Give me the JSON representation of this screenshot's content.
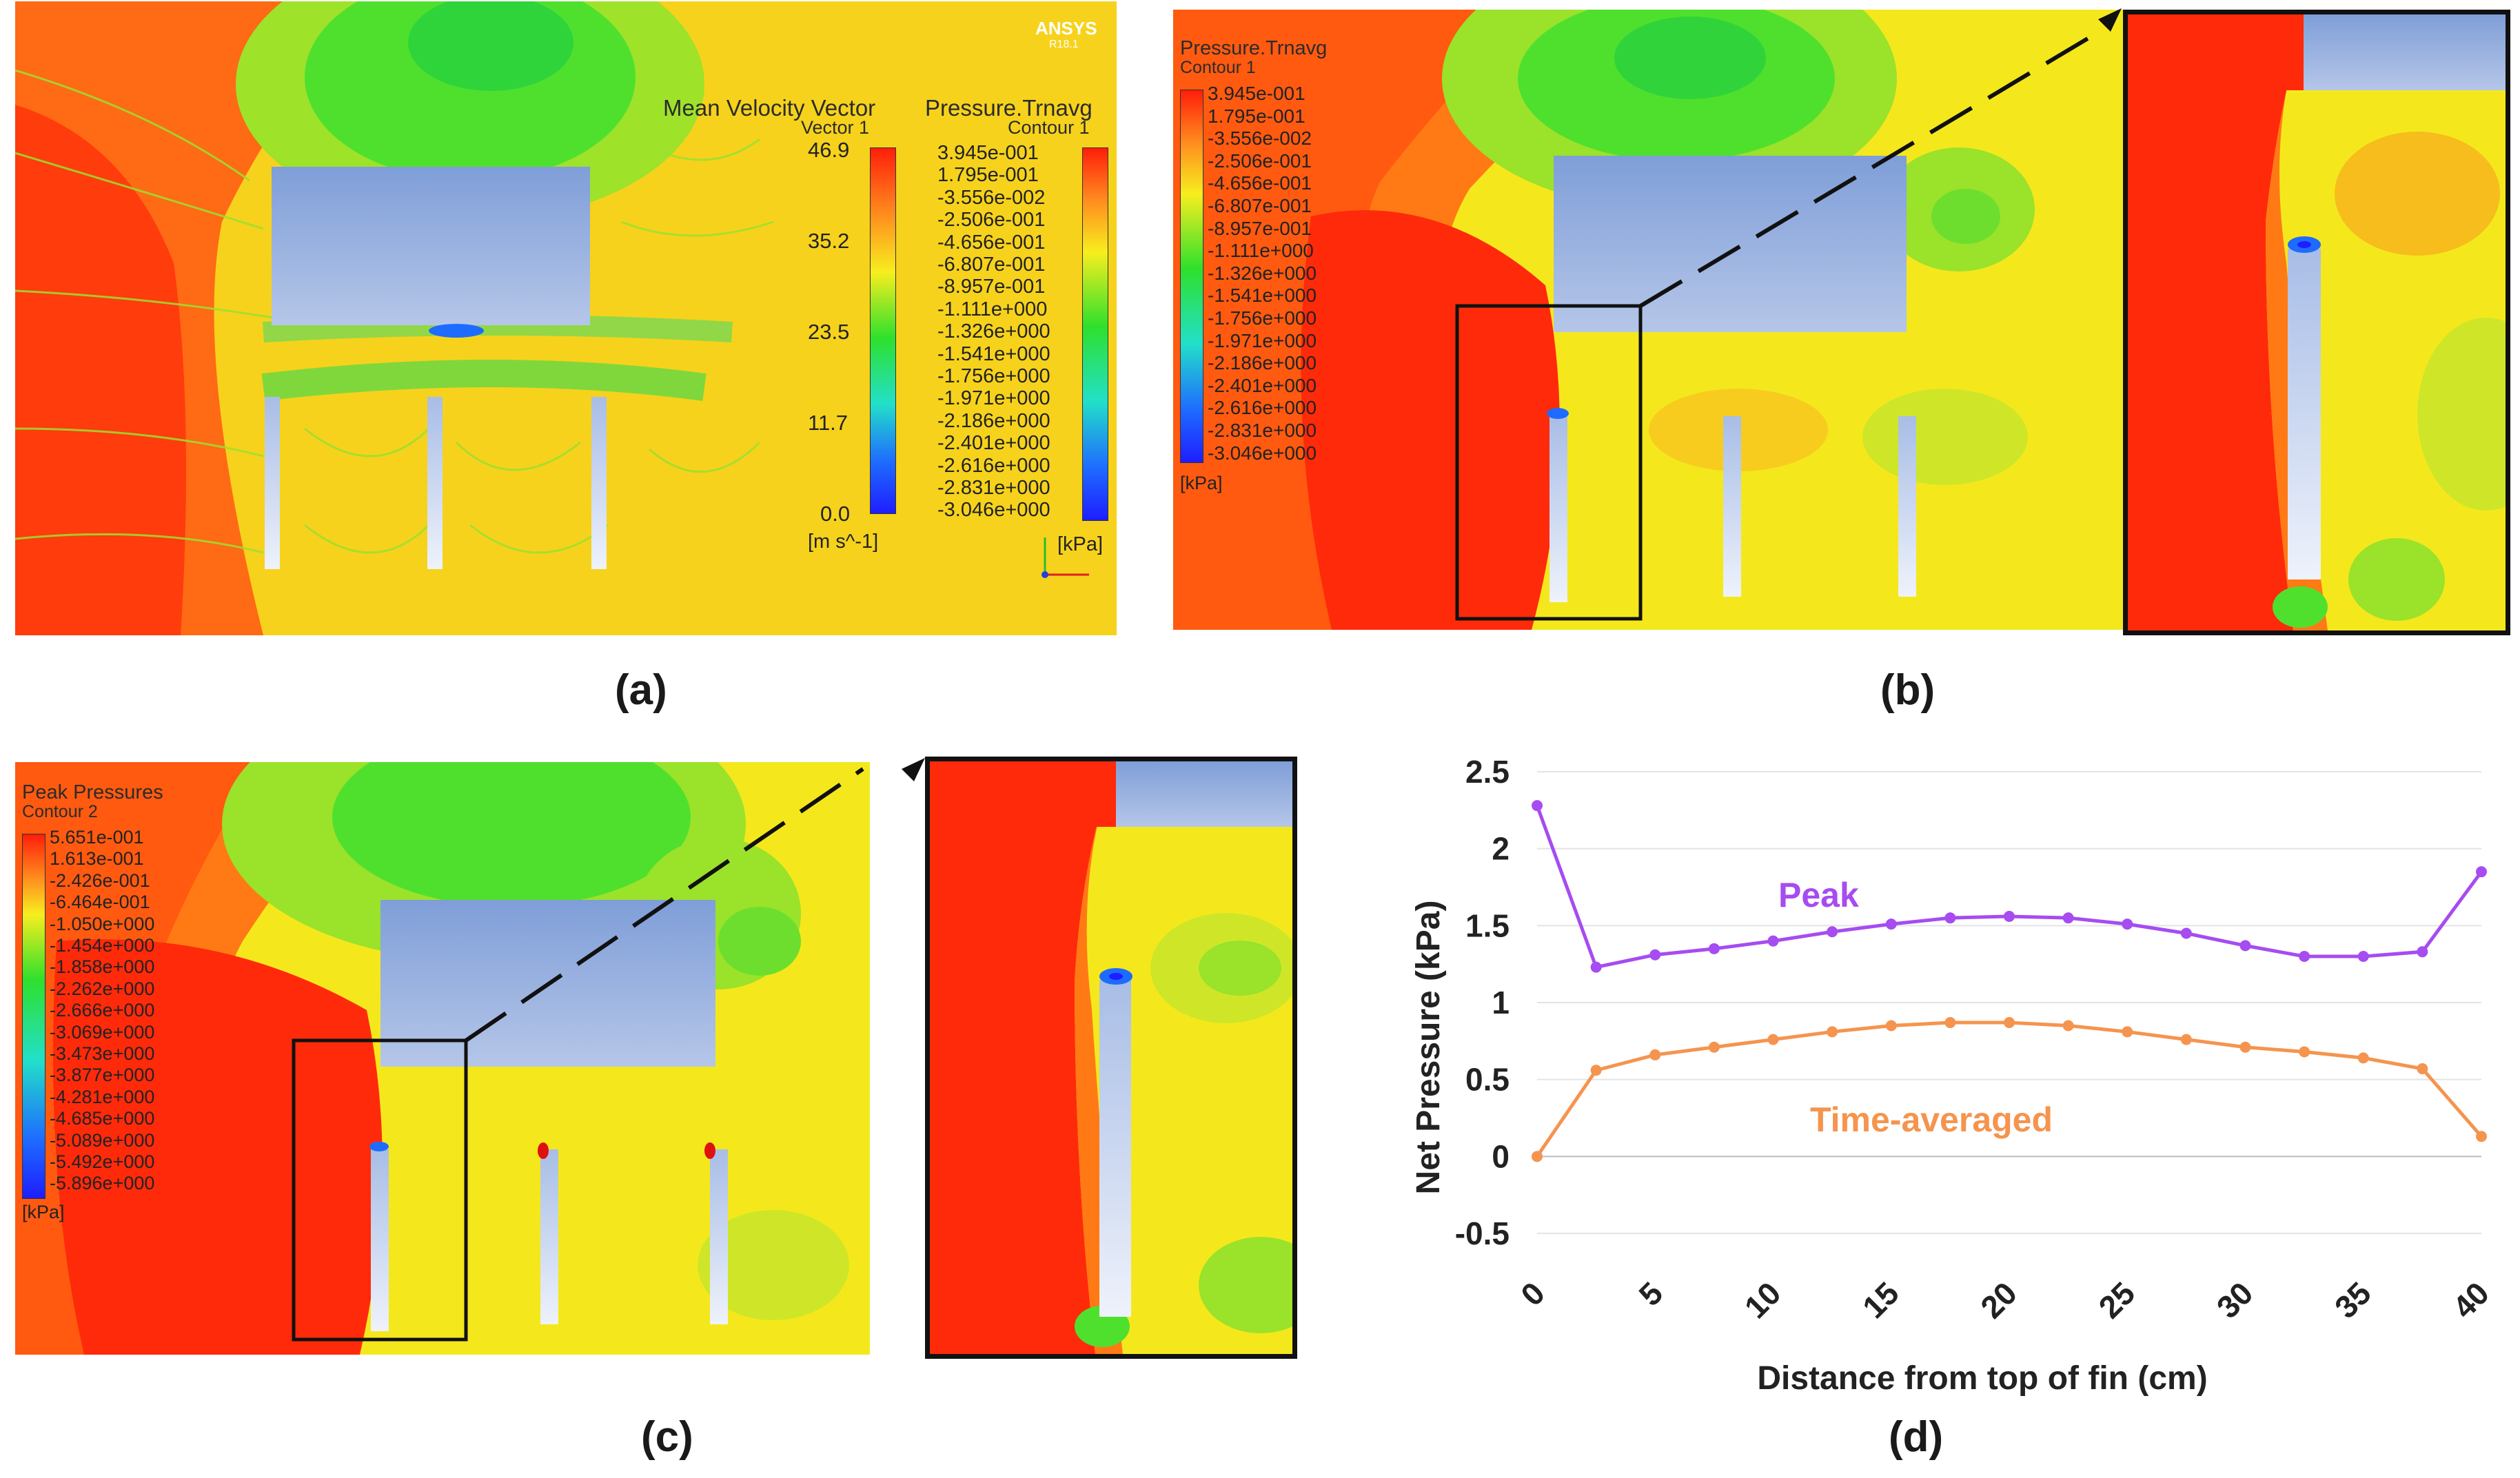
{
  "figure": {
    "captions": [
      "(a)",
      "(b)",
      "(c)",
      "(d)"
    ]
  },
  "panel_a": {
    "logo": "ANSYS",
    "logo_sub": "R18.1",
    "vector_legend": {
      "title": "Mean Velocity Vector",
      "subtitle": "Vector 1",
      "ticks": [
        "46.9",
        "35.2",
        "23.5",
        "11.7",
        "0.0"
      ],
      "unit": "[m s^-1]"
    },
    "pressure_legend": {
      "title": "Pressure.Trnavg",
      "subtitle": "Contour 1",
      "ticks": [
        "3.945e-001",
        "1.795e-001",
        "-3.556e-002",
        "-2.506e-001",
        "-4.656e-001",
        "-6.807e-001",
        "-8.957e-001",
        "-1.111e+000",
        "-1.326e+000",
        "-1.541e+000",
        "-1.756e+000",
        "-1.971e+000",
        "-2.186e+000",
        "-2.401e+000",
        "-2.616e+000",
        "-2.831e+000",
        "-3.046e+000"
      ],
      "unit": "[kPa]"
    }
  },
  "panel_b": {
    "legend": {
      "title": "Pressure.Trnavg",
      "subtitle": "Contour 1",
      "ticks": [
        "3.945e-001",
        "1.795e-001",
        "-3.556e-002",
        "-2.506e-001",
        "-4.656e-001",
        "-6.807e-001",
        "-8.957e-001",
        "-1.111e+000",
        "-1.326e+000",
        "-1.541e+000",
        "-1.756e+000",
        "-1.971e+000",
        "-2.186e+000",
        "-2.401e+000",
        "-2.616e+000",
        "-2.831e+000",
        "-3.046e+000"
      ],
      "unit": "[kPa]"
    }
  },
  "panel_c": {
    "legend": {
      "title": "Peak Pressures",
      "subtitle": "Contour 2",
      "ticks": [
        "5.651e-001",
        "1.613e-001",
        "-2.426e-001",
        "-6.464e-001",
        "-1.050e+000",
        "-1.454e+000",
        "-1.858e+000",
        "-2.262e+000",
        "-2.666e+000",
        "-3.069e+000",
        "-3.473e+000",
        "-3.877e+000",
        "-4.281e+000",
        "-4.685e+000",
        "-5.089e+000",
        "-5.492e+000",
        "-5.896e+000"
      ],
      "unit": "[kPa]"
    }
  },
  "colors": {
    "purple": "#a64cf0",
    "orange": "#f5944e",
    "contour_red": "#ff1e0a",
    "contour_yellow": "#f1ee1e",
    "contour_green": "#2ee02c",
    "body_blue": "#8ea9dd"
  },
  "chart_data": {
    "type": "line",
    "title": "",
    "xlabel": "Distance from top of fin (cm)",
    "ylabel": "Net Pressure (kPa)",
    "xlim": [
      0,
      40
    ],
    "ylim": [
      -0.5,
      2.5
    ],
    "x_ticks": [
      "0",
      "5",
      "10",
      "15",
      "20",
      "25",
      "30",
      "35",
      "40"
    ],
    "y_ticks": [
      "2.5",
      "2",
      "1.5",
      "1",
      "0.5",
      "0",
      "-0.5"
    ],
    "series": [
      {
        "name": "Peak",
        "color": "#a64cf0",
        "x": [
          0,
          2.5,
          5,
          7.5,
          10,
          12.5,
          15,
          17.5,
          20,
          22.5,
          25,
          27.5,
          30,
          32.5,
          35,
          37.5,
          40
        ],
        "values": [
          2.28,
          1.23,
          1.31,
          1.35,
          1.4,
          1.46,
          1.51,
          1.55,
          1.56,
          1.55,
          1.51,
          1.45,
          1.37,
          1.3,
          1.3,
          1.33,
          1.85
        ]
      },
      {
        "name": "Time-averaged",
        "color": "#f5944e",
        "x": [
          0,
          2.5,
          5,
          7.5,
          10,
          12.5,
          15,
          17.5,
          20,
          22.5,
          25,
          27.5,
          30,
          32.5,
          35,
          37.5,
          40
        ],
        "values": [
          0.0,
          0.56,
          0.66,
          0.71,
          0.76,
          0.81,
          0.85,
          0.87,
          0.87,
          0.85,
          0.81,
          0.76,
          0.71,
          0.68,
          0.64,
          0.57,
          0.13
        ]
      }
    ]
  }
}
